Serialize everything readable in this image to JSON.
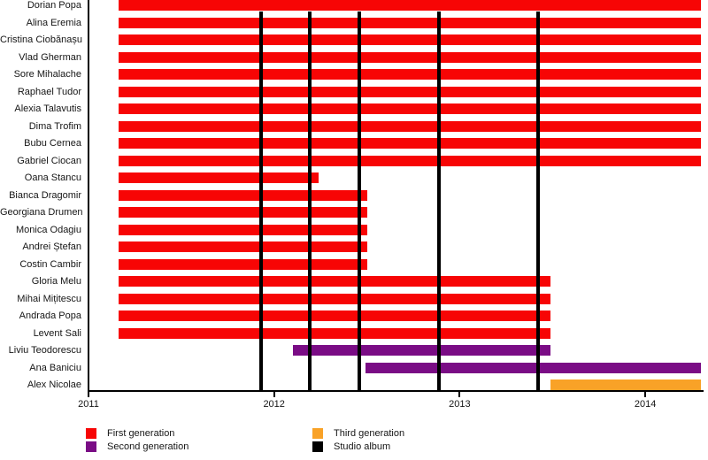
{
  "chart_data": {
    "type": "timeline",
    "title": "",
    "x_axis": {
      "ticks": [
        2011,
        2012,
        2013,
        2014
      ],
      "range": [
        2011.0,
        2014.31
      ],
      "grid": false
    },
    "members": [
      {
        "name": "Dorian Popa",
        "generation": "first",
        "start": 2011.16,
        "end": 2014.3
      },
      {
        "name": "Alina Eremia",
        "generation": "first",
        "start": 2011.16,
        "end": 2014.3
      },
      {
        "name": "Cristina Ciobănașu",
        "generation": "first",
        "start": 2011.16,
        "end": 2014.3
      },
      {
        "name": "Vlad Gherman",
        "generation": "first",
        "start": 2011.16,
        "end": 2014.3
      },
      {
        "name": "Sore Mihalache",
        "generation": "first",
        "start": 2011.16,
        "end": 2014.3
      },
      {
        "name": "Raphael Tudor",
        "generation": "first",
        "start": 2011.16,
        "end": 2014.3
      },
      {
        "name": "Alexia Talavutis",
        "generation": "first",
        "start": 2011.16,
        "end": 2014.3
      },
      {
        "name": "Dima Trofim",
        "generation": "first",
        "start": 2011.16,
        "end": 2014.3
      },
      {
        "name": "Bubu Cernea",
        "generation": "first",
        "start": 2011.16,
        "end": 2014.3
      },
      {
        "name": "Gabriel Ciocan",
        "generation": "first",
        "start": 2011.16,
        "end": 2014.3
      },
      {
        "name": "Oana Stancu",
        "generation": "first",
        "start": 2011.16,
        "end": 2012.24
      },
      {
        "name": "Bianca Dragomir",
        "generation": "first",
        "start": 2011.16,
        "end": 2012.5
      },
      {
        "name": "Georgiana Drumen",
        "generation": "first",
        "start": 2011.16,
        "end": 2012.5
      },
      {
        "name": "Monica Odagiu",
        "generation": "first",
        "start": 2011.16,
        "end": 2012.5
      },
      {
        "name": "Andrei Ștefan",
        "generation": "first",
        "start": 2011.16,
        "end": 2012.5
      },
      {
        "name": "Costin Cambir",
        "generation": "first",
        "start": 2011.16,
        "end": 2012.5
      },
      {
        "name": "Gloria Melu",
        "generation": "first",
        "start": 2011.16,
        "end": 2013.49
      },
      {
        "name": "Mihai Mițitescu",
        "generation": "first",
        "start": 2011.16,
        "end": 2013.49
      },
      {
        "name": "Andrada Popa",
        "generation": "first",
        "start": 2011.16,
        "end": 2013.49
      },
      {
        "name": "Levent Sali",
        "generation": "first",
        "start": 2011.16,
        "end": 2013.49
      },
      {
        "name": "Liviu Teodorescu",
        "generation": "second",
        "start": 2012.1,
        "end": 2013.49
      },
      {
        "name": "Ana Baniciu",
        "generation": "second",
        "start": 2012.49,
        "end": 2014.3
      },
      {
        "name": "Alex Nicolae",
        "generation": "third",
        "start": 2013.49,
        "end": 2014.3
      }
    ],
    "albums": [
      2011.93,
      2012.19,
      2012.46,
      2012.89,
      2013.42
    ],
    "colors": {
      "first": "#f70505",
      "second": "#7a0c85",
      "third": "#f9a227",
      "album": "#000000"
    },
    "legend": {
      "position": "bottom",
      "items": [
        {
          "label": "First generation",
          "color_key": "first"
        },
        {
          "label": "Second generation",
          "color_key": "second"
        },
        {
          "label": "Third generation",
          "color_key": "third"
        },
        {
          "label": "Studio album",
          "color_key": "album"
        }
      ]
    }
  }
}
